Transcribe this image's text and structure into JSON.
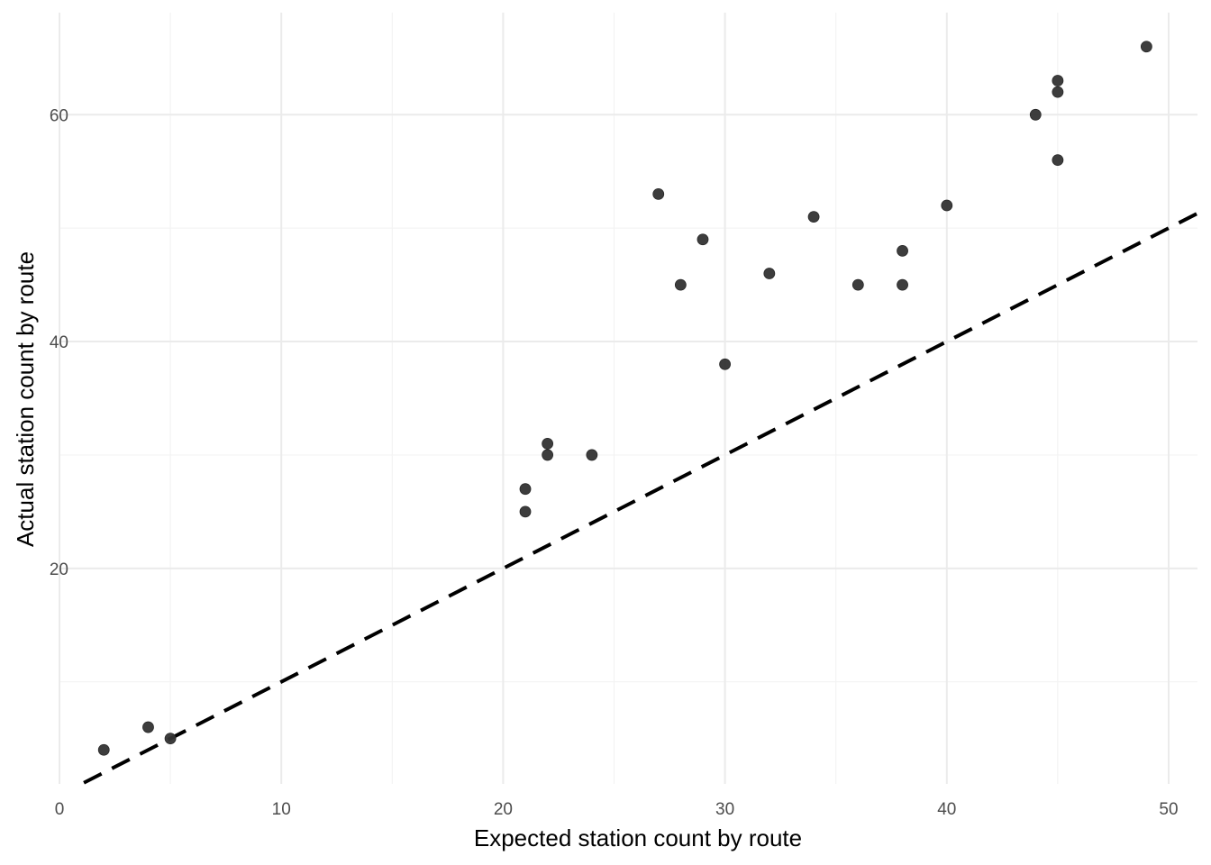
{
  "chart_data": {
    "type": "scatter",
    "xlabel": "Expected station count by route",
    "ylabel": "Actual station count by route",
    "xlim": [
      0,
      51.3
    ],
    "ylim": [
      1,
      69
    ],
    "x_major_ticks": [
      0,
      10,
      20,
      30,
      40,
      50
    ],
    "x_minor_ticks": [
      5,
      15,
      25,
      35,
      45
    ],
    "y_major_ticks": [
      20,
      40,
      60
    ],
    "y_minor_ticks": [
      10,
      30,
      50
    ],
    "x_tick_labels": [
      "0",
      "10",
      "20",
      "30",
      "40",
      "50"
    ],
    "y_tick_labels": [
      "20",
      "40",
      "60"
    ],
    "grid": true,
    "point_color": "#333333",
    "reference_line": {
      "slope": 1,
      "intercept": 0,
      "style": "dashed",
      "color": "#000000",
      "x_from": 1.1,
      "x_to": 51.3
    },
    "points": [
      {
        "x": 2,
        "y": 4
      },
      {
        "x": 4,
        "y": 6
      },
      {
        "x": 5,
        "y": 5
      },
      {
        "x": 21,
        "y": 25
      },
      {
        "x": 21,
        "y": 27
      },
      {
        "x": 22,
        "y": 30
      },
      {
        "x": 22,
        "y": 31
      },
      {
        "x": 24,
        "y": 30
      },
      {
        "x": 27,
        "y": 53
      },
      {
        "x": 28,
        "y": 45
      },
      {
        "x": 29,
        "y": 49
      },
      {
        "x": 30,
        "y": 38
      },
      {
        "x": 32,
        "y": 46
      },
      {
        "x": 34,
        "y": 51
      },
      {
        "x": 36,
        "y": 45
      },
      {
        "x": 38,
        "y": 45
      },
      {
        "x": 38,
        "y": 48
      },
      {
        "x": 40,
        "y": 52
      },
      {
        "x": 44,
        "y": 60
      },
      {
        "x": 45,
        "y": 56
      },
      {
        "x": 45,
        "y": 62
      },
      {
        "x": 45,
        "y": 63
      },
      {
        "x": 49,
        "y": 66
      }
    ]
  }
}
